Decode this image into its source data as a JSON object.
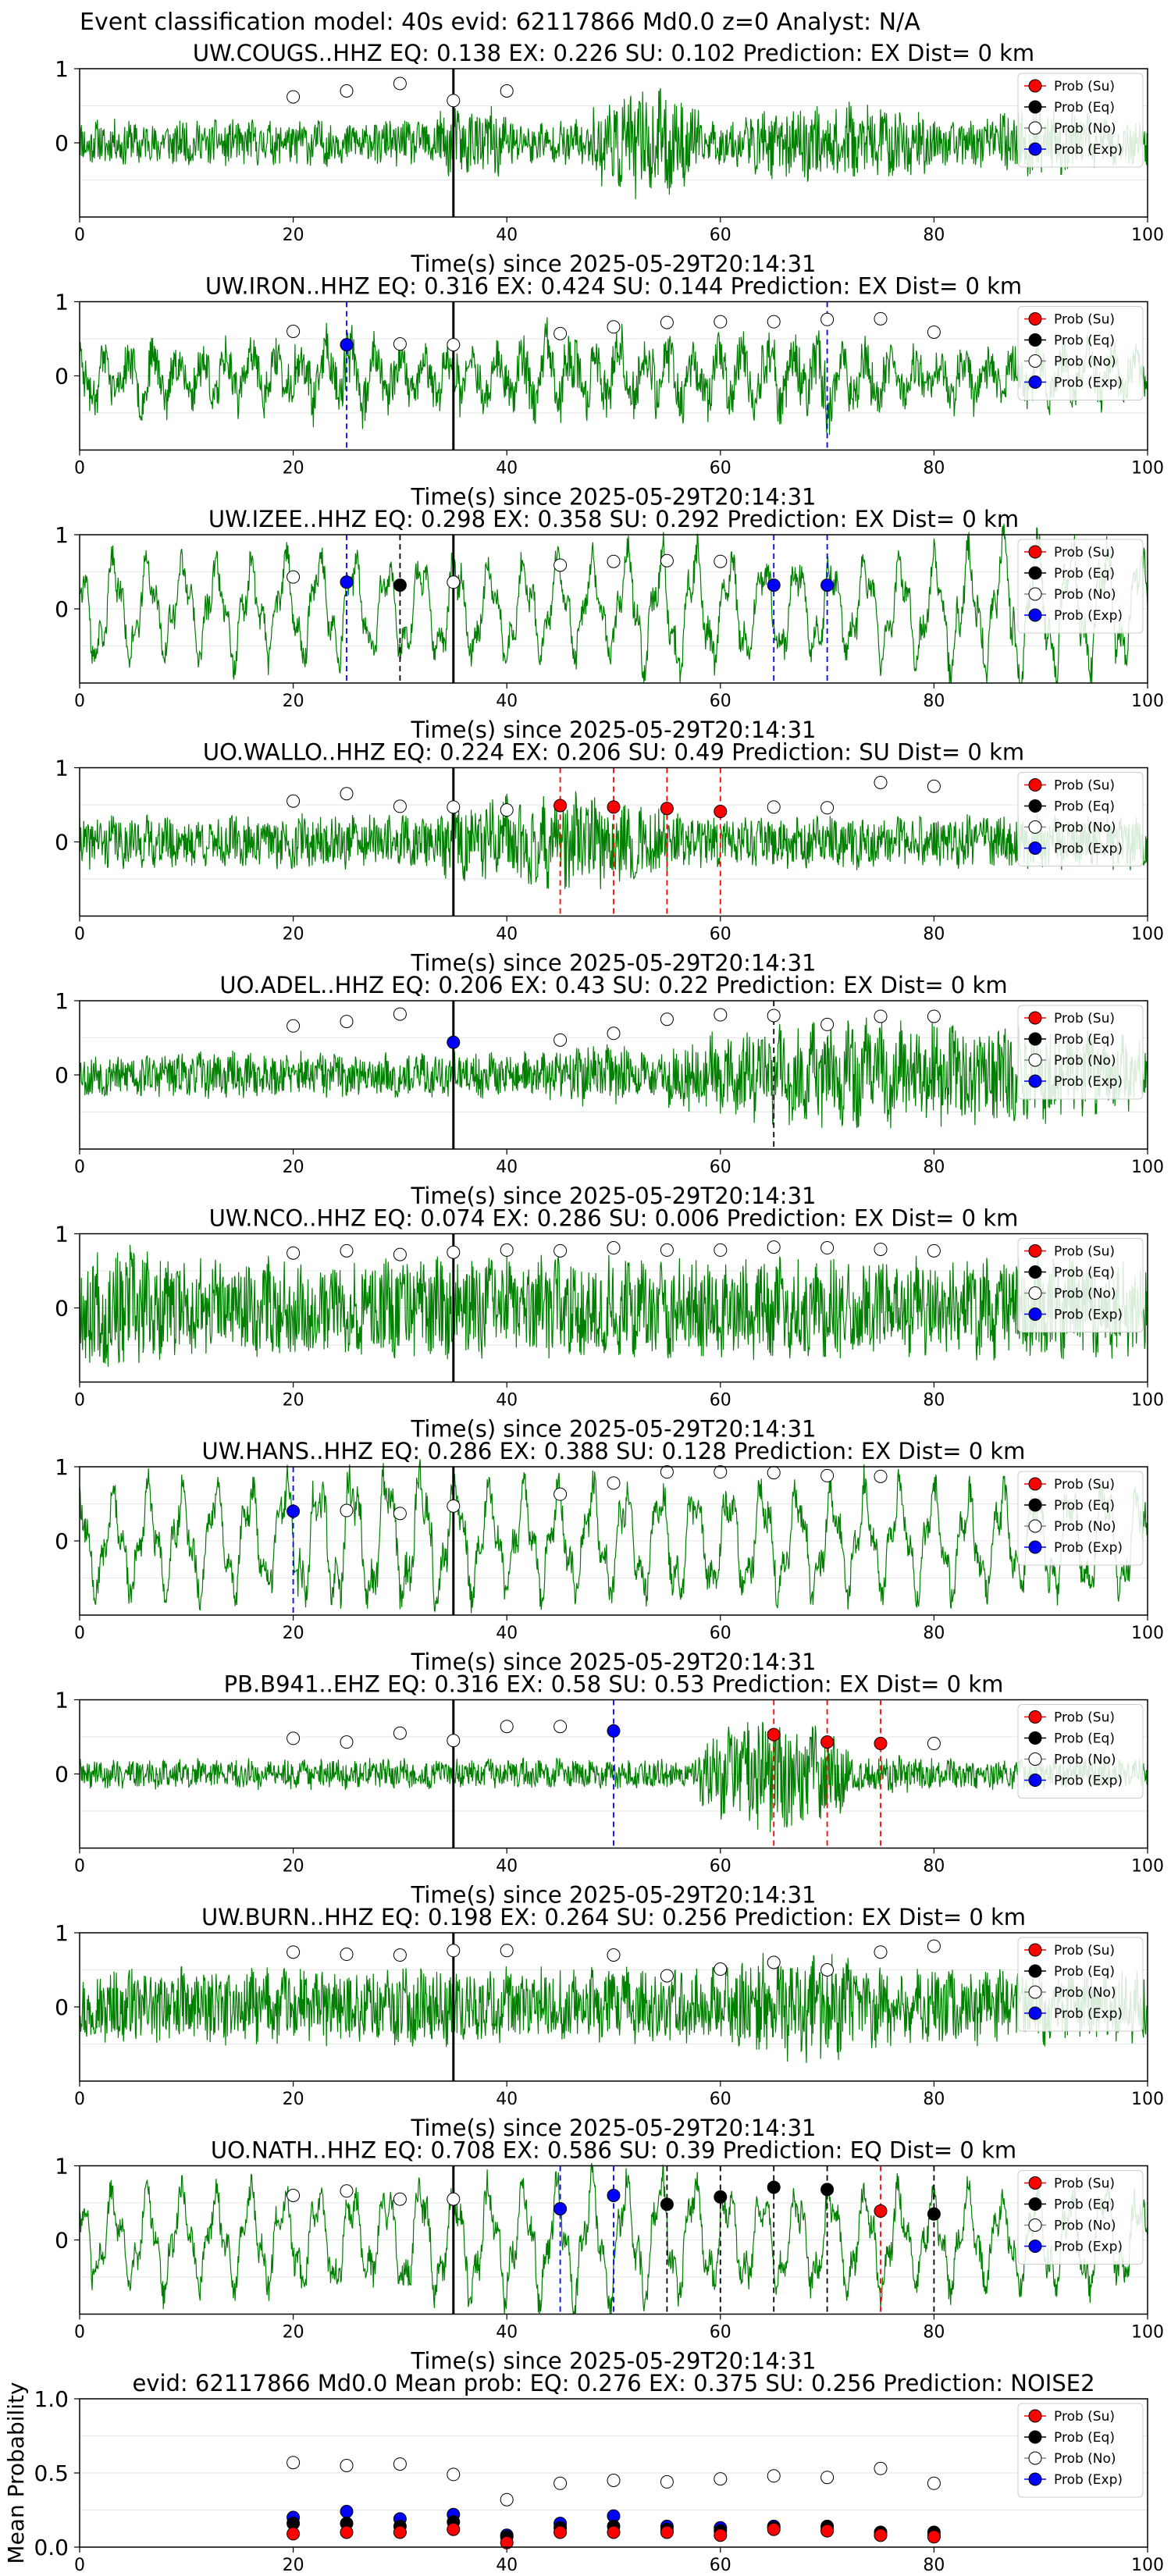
{
  "figure_title": "Event classification model: 40s evid: 62117866 Md0.0 z=0 Analyst: N/A",
  "colors": {
    "waveform": "#008000",
    "su": "#ff0000",
    "eq": "#000000",
    "no": "#ffffff",
    "exp": "#0000ff",
    "pick_line": "#000000",
    "grid": "#e6e6e6"
  },
  "legend_labels": [
    "Prob (Su)",
    "Prob (Eq)",
    "Prob (No)",
    "Prob (Exp)"
  ],
  "chart_data": [
    {
      "type": "line",
      "title": "UW.COUGS..HHZ   EQ: 0.138  EX: 0.226  SU: 0.102   Prediction: EX    Dist= 0 km",
      "xlabel": "Time(s) since 2025-05-29T20:14:31",
      "ylabel": "",
      "xlim": [
        0,
        100
      ],
      "ylim": [
        -1,
        1
      ],
      "xticks": [
        0,
        20,
        40,
        60,
        80,
        100
      ],
      "yticks": [
        0,
        1
      ],
      "pick_time": 35,
      "legend": "top-right",
      "grid": "y",
      "wave": {
        "character": "broadband",
        "seed": 11,
        "amp": 0.3,
        "bursts": [
          [
            33,
            41,
            1.6
          ],
          [
            48,
            58,
            2.4
          ],
          [
            62,
            80,
            1.7
          ],
          [
            84,
            96,
            1.5
          ]
        ]
      },
      "probs": [
        {
          "x": 20,
          "no": 0.62
        },
        {
          "x": 25,
          "no": 0.7
        },
        {
          "x": 30,
          "no": 0.8
        },
        {
          "x": 35,
          "no": 0.57
        },
        {
          "x": 40,
          "no": 0.7
        }
      ],
      "markers": []
    },
    {
      "type": "line",
      "title": "UW.IRON..HHZ   EQ: 0.316  EX: 0.424  SU: 0.144   Prediction: EX    Dist= 0 km",
      "xlabel": "Time(s) since 2025-05-29T20:14:31",
      "ylabel": "",
      "xlim": [
        0,
        100
      ],
      "ylim": [
        -1,
        1
      ],
      "xticks": [
        0,
        20,
        40,
        60,
        80,
        100
      ],
      "yticks": [
        0,
        1
      ],
      "pick_time": 35,
      "legend": "top-right",
      "grid": "y",
      "wave": {
        "character": "mixed",
        "seed": 23,
        "amp": 0.55,
        "bursts": [
          [
            20,
            30,
            1.2
          ],
          [
            40,
            60,
            1.3
          ],
          [
            60,
            75,
            1.4
          ]
        ]
      },
      "probs": [
        {
          "x": 20,
          "no": 0.6
        },
        {
          "x": 25,
          "exp": 0.42
        },
        {
          "x": 30,
          "no": 0.43
        },
        {
          "x": 35,
          "no": 0.42
        },
        {
          "x": 45,
          "no": 0.57
        },
        {
          "x": 50,
          "no": 0.66
        },
        {
          "x": 55,
          "no": 0.72
        },
        {
          "x": 60,
          "no": 0.73
        },
        {
          "x": 65,
          "no": 0.73
        },
        {
          "x": 70,
          "no": 0.76
        },
        {
          "x": 75,
          "no": 0.77
        },
        {
          "x": 80,
          "no": 0.59
        }
      ],
      "markers": [
        {
          "x": 25,
          "cls": "exp"
        },
        {
          "x": 70,
          "cls": "exp"
        }
      ]
    },
    {
      "type": "line",
      "title": "UW.IZEE..HHZ   EQ: 0.298  EX: 0.358  SU: 0.292   Prediction: EX    Dist= 0 km",
      "xlabel": "Time(s) since 2025-05-29T20:14:31",
      "ylabel": "",
      "xlim": [
        0,
        100
      ],
      "ylim": [
        -1,
        1
      ],
      "xticks": [
        0,
        20,
        40,
        60,
        80,
        100
      ],
      "yticks": [
        0,
        1
      ],
      "pick_time": 35,
      "legend": "top-right",
      "grid": "y",
      "wave": {
        "character": "oscillatory",
        "seed": 37,
        "amp": 0.7,
        "bursts": [
          [
            50,
            60,
            1.3
          ],
          [
            80,
            100,
            1.4
          ]
        ]
      },
      "probs": [
        {
          "x": 20,
          "no": 0.43
        },
        {
          "x": 25,
          "exp": 0.36
        },
        {
          "x": 30,
          "eq": 0.32
        },
        {
          "x": 35,
          "no": 0.36
        },
        {
          "x": 45,
          "no": 0.59
        },
        {
          "x": 50,
          "no": 0.64
        },
        {
          "x": 55,
          "no": 0.65
        },
        {
          "x": 60,
          "no": 0.64
        },
        {
          "x": 65,
          "exp": 0.32
        },
        {
          "x": 70,
          "exp": 0.32
        }
      ],
      "markers": [
        {
          "x": 25,
          "cls": "exp"
        },
        {
          "x": 30,
          "cls": "eq"
        },
        {
          "x": 65,
          "cls": "exp"
        },
        {
          "x": 70,
          "cls": "exp"
        }
      ]
    },
    {
      "type": "line",
      "title": "UO.WALLO..HHZ   EQ: 0.224  EX: 0.206  SU: 0.49   Prediction: SU    Dist= 0 km",
      "xlabel": "Time(s) since 2025-05-29T20:14:31",
      "ylabel": "",
      "xlim": [
        0,
        100
      ],
      "ylim": [
        -1,
        1
      ],
      "xticks": [
        0,
        20,
        40,
        60,
        80,
        100
      ],
      "yticks": [
        0,
        1
      ],
      "pick_time": 35,
      "legend": "top-right",
      "grid": "y",
      "wave": {
        "character": "broadband",
        "seed": 41,
        "amp": 0.35,
        "bursts": [
          [
            34,
            55,
            1.8
          ]
        ]
      },
      "probs": [
        {
          "x": 20,
          "no": 0.55
        },
        {
          "x": 25,
          "no": 0.65
        },
        {
          "x": 30,
          "no": 0.48
        },
        {
          "x": 35,
          "no": 0.47
        },
        {
          "x": 40,
          "no": 0.43
        },
        {
          "x": 45,
          "su": 0.49
        },
        {
          "x": 50,
          "su": 0.47
        },
        {
          "x": 55,
          "su": 0.45
        },
        {
          "x": 60,
          "su": 0.41
        },
        {
          "x": 65,
          "no": 0.47
        },
        {
          "x": 70,
          "no": 0.46
        },
        {
          "x": 75,
          "no": 0.8
        },
        {
          "x": 80,
          "no": 0.75
        }
      ],
      "markers": [
        {
          "x": 45,
          "cls": "su"
        },
        {
          "x": 50,
          "cls": "su"
        },
        {
          "x": 55,
          "cls": "su"
        },
        {
          "x": 60,
          "cls": "su"
        }
      ]
    },
    {
      "type": "line",
      "title": "UO.ADEL..HHZ   EQ: 0.206  EX: 0.43  SU: 0.22   Prediction: EX    Dist= 0 km",
      "xlabel": "Time(s) since 2025-05-29T20:14:31",
      "ylabel": "",
      "xlim": [
        0,
        100
      ],
      "ylim": [
        -1,
        1
      ],
      "xticks": [
        0,
        20,
        40,
        60,
        80,
        100
      ],
      "yticks": [
        0,
        1
      ],
      "pick_time": 35,
      "legend": "top-right",
      "grid": "y",
      "wave": {
        "character": "broadband",
        "seed": 53,
        "amp": 0.3,
        "bursts": [
          [
            44,
            52,
            1.4
          ],
          [
            55,
            100,
            2.4
          ]
        ]
      },
      "probs": [
        {
          "x": 20,
          "no": 0.66
        },
        {
          "x": 25,
          "no": 0.72
        },
        {
          "x": 30,
          "no": 0.82
        },
        {
          "x": 35,
          "exp": 0.44
        },
        {
          "x": 45,
          "no": 0.47
        },
        {
          "x": 50,
          "no": 0.56
        },
        {
          "x": 55,
          "no": 0.75
        },
        {
          "x": 60,
          "no": 0.81
        },
        {
          "x": 65,
          "no": 0.8
        },
        {
          "x": 70,
          "no": 0.68
        },
        {
          "x": 75,
          "no": 0.79
        },
        {
          "x": 80,
          "no": 0.79
        }
      ],
      "markers": [
        {
          "x": 65,
          "cls": "eq"
        }
      ]
    },
    {
      "type": "line",
      "title": "UW.NCO..HHZ   EQ: 0.074  EX: 0.286  SU: 0.006   Prediction: EX    Dist= 0 km",
      "xlabel": "Time(s) since 2025-05-29T20:14:31",
      "ylabel": "",
      "xlim": [
        0,
        100
      ],
      "ylim": [
        -1,
        1
      ],
      "xticks": [
        0,
        20,
        40,
        60,
        80,
        100
      ],
      "yticks": [
        0,
        1
      ],
      "pick_time": 35,
      "legend": "top-right",
      "grid": "y",
      "wave": {
        "character": "broadband",
        "seed": 67,
        "amp": 0.65,
        "bursts": [
          [
            0,
            8,
            1.3
          ]
        ]
      },
      "probs": [
        {
          "x": 20,
          "no": 0.74
        },
        {
          "x": 25,
          "no": 0.77
        },
        {
          "x": 30,
          "no": 0.72
        },
        {
          "x": 35,
          "no": 0.75
        },
        {
          "x": 40,
          "no": 0.78
        },
        {
          "x": 45,
          "no": 0.77
        },
        {
          "x": 50,
          "no": 0.81
        },
        {
          "x": 55,
          "no": 0.78
        },
        {
          "x": 60,
          "no": 0.78
        },
        {
          "x": 65,
          "no": 0.82
        },
        {
          "x": 70,
          "no": 0.81
        },
        {
          "x": 75,
          "no": 0.79
        },
        {
          "x": 80,
          "no": 0.77
        }
      ],
      "markers": []
    },
    {
      "type": "line",
      "title": "UW.HANS..HHZ   EQ: 0.286  EX: 0.388  SU: 0.128   Prediction: EX    Dist= 0 km",
      "xlabel": "Time(s) since 2025-05-29T20:14:31",
      "ylabel": "",
      "xlim": [
        0,
        100
      ],
      "ylim": [
        -1,
        1
      ],
      "xticks": [
        0,
        20,
        40,
        60,
        80,
        100
      ],
      "yticks": [
        0,
        1
      ],
      "pick_time": 35,
      "legend": "top-right",
      "grid": "y",
      "wave": {
        "character": "oscillatory",
        "seed": 79,
        "amp": 0.75,
        "bursts": [
          [
            18,
            38,
            1.3
          ]
        ]
      },
      "probs": [
        {
          "x": 20,
          "exp": 0.4
        },
        {
          "x": 25,
          "no": 0.41
        },
        {
          "x": 30,
          "no": 0.37
        },
        {
          "x": 35,
          "no": 0.47
        },
        {
          "x": 45,
          "no": 0.63
        },
        {
          "x": 50,
          "no": 0.78
        },
        {
          "x": 55,
          "no": 0.93
        },
        {
          "x": 60,
          "no": 0.93
        },
        {
          "x": 65,
          "no": 0.92
        },
        {
          "x": 70,
          "no": 0.88
        },
        {
          "x": 75,
          "no": 0.87
        }
      ],
      "markers": [
        {
          "x": 20,
          "cls": "exp"
        }
      ]
    },
    {
      "type": "line",
      "title": "PB.B941..EHZ   EQ: 0.316  EX: 0.58  SU: 0.53   Prediction: EX    Dist= 0 km",
      "xlabel": "Time(s) since 2025-05-29T20:14:31",
      "ylabel": "",
      "xlim": [
        0,
        100
      ],
      "ylim": [
        -1,
        1
      ],
      "xticks": [
        0,
        20,
        40,
        60,
        80,
        100
      ],
      "yticks": [
        0,
        1
      ],
      "pick_time": 35,
      "legend": "top-right",
      "grid": "y",
      "wave": {
        "character": "broadband",
        "seed": 89,
        "amp": 0.2,
        "bursts": [
          [
            35,
            45,
            0.9
          ],
          [
            58,
            72,
            4.0
          ],
          [
            72,
            80,
            1.2
          ]
        ]
      },
      "probs": [
        {
          "x": 20,
          "no": 0.48
        },
        {
          "x": 25,
          "no": 0.43
        },
        {
          "x": 30,
          "no": 0.55
        },
        {
          "x": 35,
          "no": 0.45
        },
        {
          "x": 40,
          "no": 0.64
        },
        {
          "x": 45,
          "no": 0.64
        },
        {
          "x": 50,
          "exp": 0.58
        },
        {
          "x": 65,
          "su": 0.53
        },
        {
          "x": 70,
          "su": 0.43
        },
        {
          "x": 75,
          "su": 0.41
        },
        {
          "x": 80,
          "no": 0.41
        }
      ],
      "markers": [
        {
          "x": 50,
          "cls": "exp"
        },
        {
          "x": 65,
          "cls": "su"
        },
        {
          "x": 70,
          "cls": "su"
        },
        {
          "x": 75,
          "cls": "su"
        }
      ]
    },
    {
      "type": "line",
      "title": "UW.BURN..HHZ   EQ: 0.198  EX: 0.264  SU: 0.256   Prediction: EX    Dist= 0 km",
      "xlabel": "Time(s) since 2025-05-29T20:14:31",
      "ylabel": "",
      "xlim": [
        0,
        100
      ],
      "ylim": [
        -1,
        1
      ],
      "xticks": [
        0,
        20,
        40,
        60,
        80,
        100
      ],
      "yticks": [
        0,
        1
      ],
      "pick_time": 35,
      "legend": "top-right",
      "grid": "y",
      "wave": {
        "character": "broadband",
        "seed": 97,
        "amp": 0.5,
        "bursts": [
          [
            60,
            75,
            1.4
          ]
        ]
      },
      "probs": [
        {
          "x": 20,
          "no": 0.74
        },
        {
          "x": 25,
          "no": 0.71
        },
        {
          "x": 30,
          "no": 0.7
        },
        {
          "x": 35,
          "no": 0.76
        },
        {
          "x": 40,
          "no": 0.76
        },
        {
          "x": 50,
          "no": 0.7
        },
        {
          "x": 55,
          "no": 0.42
        },
        {
          "x": 60,
          "no": 0.51
        },
        {
          "x": 65,
          "no": 0.6
        },
        {
          "x": 70,
          "no": 0.5
        },
        {
          "x": 75,
          "no": 0.74
        },
        {
          "x": 80,
          "no": 0.82
        }
      ],
      "markers": []
    },
    {
      "type": "line",
      "title": "UO.NATH..HHZ   EQ: 0.708  EX: 0.586  SU: 0.39   Prediction: EQ    Dist= 0 km",
      "xlabel": "Time(s) since 2025-05-29T20:14:31",
      "ylabel": "",
      "xlim": [
        0,
        100
      ],
      "ylim": [
        -1,
        1
      ],
      "xticks": [
        0,
        20,
        40,
        60,
        80,
        100
      ],
      "yticks": [
        0,
        1
      ],
      "pick_time": 35,
      "legend": "top-right",
      "grid": "y",
      "wave": {
        "character": "oscillatory",
        "seed": 103,
        "amp": 0.7,
        "bursts": [
          [
            30,
            60,
            1.2
          ]
        ]
      },
      "probs": [
        {
          "x": 20,
          "no": 0.6
        },
        {
          "x": 25,
          "no": 0.66
        },
        {
          "x": 30,
          "no": 0.55
        },
        {
          "x": 35,
          "no": 0.55
        },
        {
          "x": 45,
          "exp": 0.42
        },
        {
          "x": 50,
          "exp": 0.6
        },
        {
          "x": 55,
          "eq": 0.48
        },
        {
          "x": 60,
          "eq": 0.58
        },
        {
          "x": 65,
          "eq": 0.71
        },
        {
          "x": 70,
          "eq": 0.68
        },
        {
          "x": 75,
          "su": 0.39
        },
        {
          "x": 80,
          "eq": 0.35
        }
      ],
      "markers": [
        {
          "x": 45,
          "cls": "exp"
        },
        {
          "x": 50,
          "cls": "exp"
        },
        {
          "x": 55,
          "cls": "eq"
        },
        {
          "x": 60,
          "cls": "eq"
        },
        {
          "x": 65,
          "cls": "eq"
        },
        {
          "x": 70,
          "cls": "eq"
        },
        {
          "x": 75,
          "cls": "su"
        },
        {
          "x": 80,
          "cls": "eq"
        }
      ]
    },
    {
      "type": "scatter",
      "title": "evid: 62117866  Md0.0   Mean prob:   EQ: 0.276  EX: 0.375  SU: 0.256   Prediction: NOISE2",
      "xlabel": "",
      "ylabel": "Mean Probability",
      "xlim": [
        0,
        100
      ],
      "ylim": [
        0,
        1
      ],
      "xticks": [
        0,
        20,
        40,
        60,
        80,
        100
      ],
      "yticks": [
        0.0,
        0.5,
        1.0
      ],
      "ytick_labels": [
        "0.0",
        "0.5",
        "1.0"
      ],
      "legend": "top-right",
      "grid": "y",
      "series": [
        {
          "name": "Prob (No)",
          "x": [
            20,
            25,
            30,
            35,
            40,
            45,
            50,
            55,
            60,
            65,
            70,
            75,
            80
          ],
          "values": [
            0.57,
            0.55,
            0.56,
            0.49,
            0.32,
            0.43,
            0.45,
            0.44,
            0.46,
            0.48,
            0.47,
            0.53,
            0.43
          ]
        },
        {
          "name": "Prob (Exp)",
          "x": [
            20,
            25,
            30,
            35,
            40,
            45,
            50,
            55,
            60,
            65,
            70,
            75,
            80
          ],
          "values": [
            0.2,
            0.24,
            0.19,
            0.22,
            0.08,
            0.16,
            0.21,
            0.14,
            0.13,
            0.14,
            0.12,
            0.08,
            0.08
          ]
        },
        {
          "name": "Prob (Eq)",
          "x": [
            20,
            25,
            30,
            35,
            40,
            45,
            50,
            55,
            60,
            65,
            70,
            75,
            80
          ],
          "values": [
            0.16,
            0.16,
            0.14,
            0.17,
            0.07,
            0.13,
            0.14,
            0.12,
            0.11,
            0.13,
            0.14,
            0.1,
            0.1
          ]
        },
        {
          "name": "Prob (Su)",
          "x": [
            20,
            25,
            30,
            35,
            40,
            45,
            50,
            55,
            60,
            65,
            70,
            75,
            80
          ],
          "values": [
            0.09,
            0.1,
            0.1,
            0.12,
            0.03,
            0.1,
            0.1,
            0.1,
            0.08,
            0.12,
            0.11,
            0.08,
            0.07
          ]
        }
      ]
    }
  ]
}
